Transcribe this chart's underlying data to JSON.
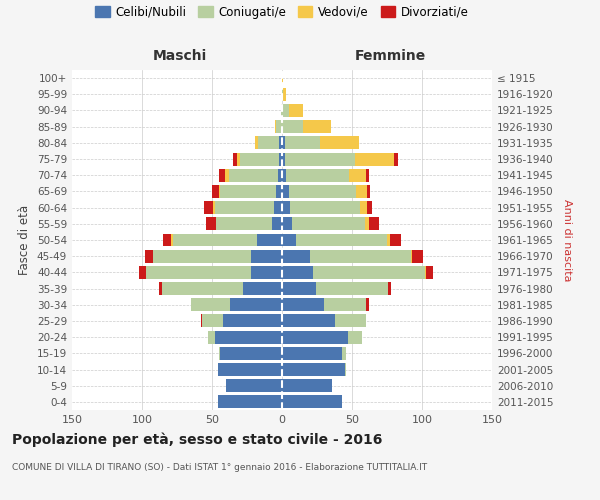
{
  "age_groups": [
    "0-4",
    "5-9",
    "10-14",
    "15-19",
    "20-24",
    "25-29",
    "30-34",
    "35-39",
    "40-44",
    "45-49",
    "50-54",
    "55-59",
    "60-64",
    "65-69",
    "70-74",
    "75-79",
    "80-84",
    "85-89",
    "90-94",
    "95-99",
    "100+"
  ],
  "birth_years": [
    "2011-2015",
    "2006-2010",
    "2001-2005",
    "1996-2000",
    "1991-1995",
    "1986-1990",
    "1981-1985",
    "1976-1980",
    "1971-1975",
    "1966-1970",
    "1961-1965",
    "1956-1960",
    "1951-1955",
    "1946-1950",
    "1941-1945",
    "1936-1940",
    "1931-1935",
    "1926-1930",
    "1921-1925",
    "1916-1920",
    "≤ 1915"
  ],
  "colors": {
    "celibi": "#4b76b0",
    "coniugati": "#b8cfa0",
    "vedovi": "#f5c84a",
    "divorziati": "#cc1a1a"
  },
  "maschi": {
    "celibi": [
      46,
      40,
      46,
      44,
      48,
      42,
      37,
      28,
      22,
      22,
      18,
      7,
      6,
      4,
      3,
      2,
      2,
      0,
      0,
      0,
      0
    ],
    "coniugati": [
      0,
      0,
      0,
      1,
      5,
      15,
      28,
      58,
      75,
      70,
      60,
      40,
      42,
      40,
      35,
      28,
      15,
      4,
      1,
      0,
      0
    ],
    "vedovi": [
      0,
      0,
      0,
      0,
      0,
      0,
      0,
      0,
      0,
      0,
      1,
      0,
      1,
      1,
      3,
      2,
      2,
      1,
      0,
      0,
      0
    ],
    "divorziati": [
      0,
      0,
      0,
      0,
      0,
      1,
      0,
      2,
      5,
      6,
      6,
      7,
      7,
      5,
      4,
      3,
      0,
      0,
      0,
      0,
      0
    ]
  },
  "femmine": {
    "celibi": [
      43,
      36,
      45,
      43,
      47,
      38,
      30,
      24,
      22,
      20,
      10,
      7,
      6,
      5,
      3,
      2,
      2,
      0,
      0,
      0,
      0
    ],
    "coniugati": [
      0,
      0,
      1,
      3,
      10,
      22,
      30,
      52,
      80,
      72,
      65,
      52,
      50,
      48,
      45,
      50,
      25,
      15,
      5,
      1,
      0
    ],
    "vedovi": [
      0,
      0,
      0,
      0,
      0,
      0,
      0,
      0,
      1,
      1,
      2,
      3,
      5,
      8,
      12,
      28,
      28,
      20,
      10,
      2,
      1
    ],
    "divorziati": [
      0,
      0,
      0,
      0,
      0,
      0,
      2,
      2,
      5,
      8,
      8,
      7,
      3,
      2,
      2,
      3,
      0,
      0,
      0,
      0,
      0
    ]
  },
  "title": "Popolazione per età, sesso e stato civile - 2016",
  "subtitle": "COMUNE DI VILLA DI TIRANO (SO) - Dati ISTAT 1° gennaio 2016 - Elaborazione TUTTITALIA.IT",
  "ylabel_left": "Fasce di età",
  "ylabel_right": "Anni di nascita",
  "xlabel_maschi": "Maschi",
  "xlabel_femmine": "Femmine",
  "xlim": 150,
  "background_color": "#f5f5f5",
  "plot_bg": "#ffffff",
  "legend_labels": [
    "Celibi/Nubili",
    "Coniugati/e",
    "Vedovi/e",
    "Divorziati/e"
  ]
}
